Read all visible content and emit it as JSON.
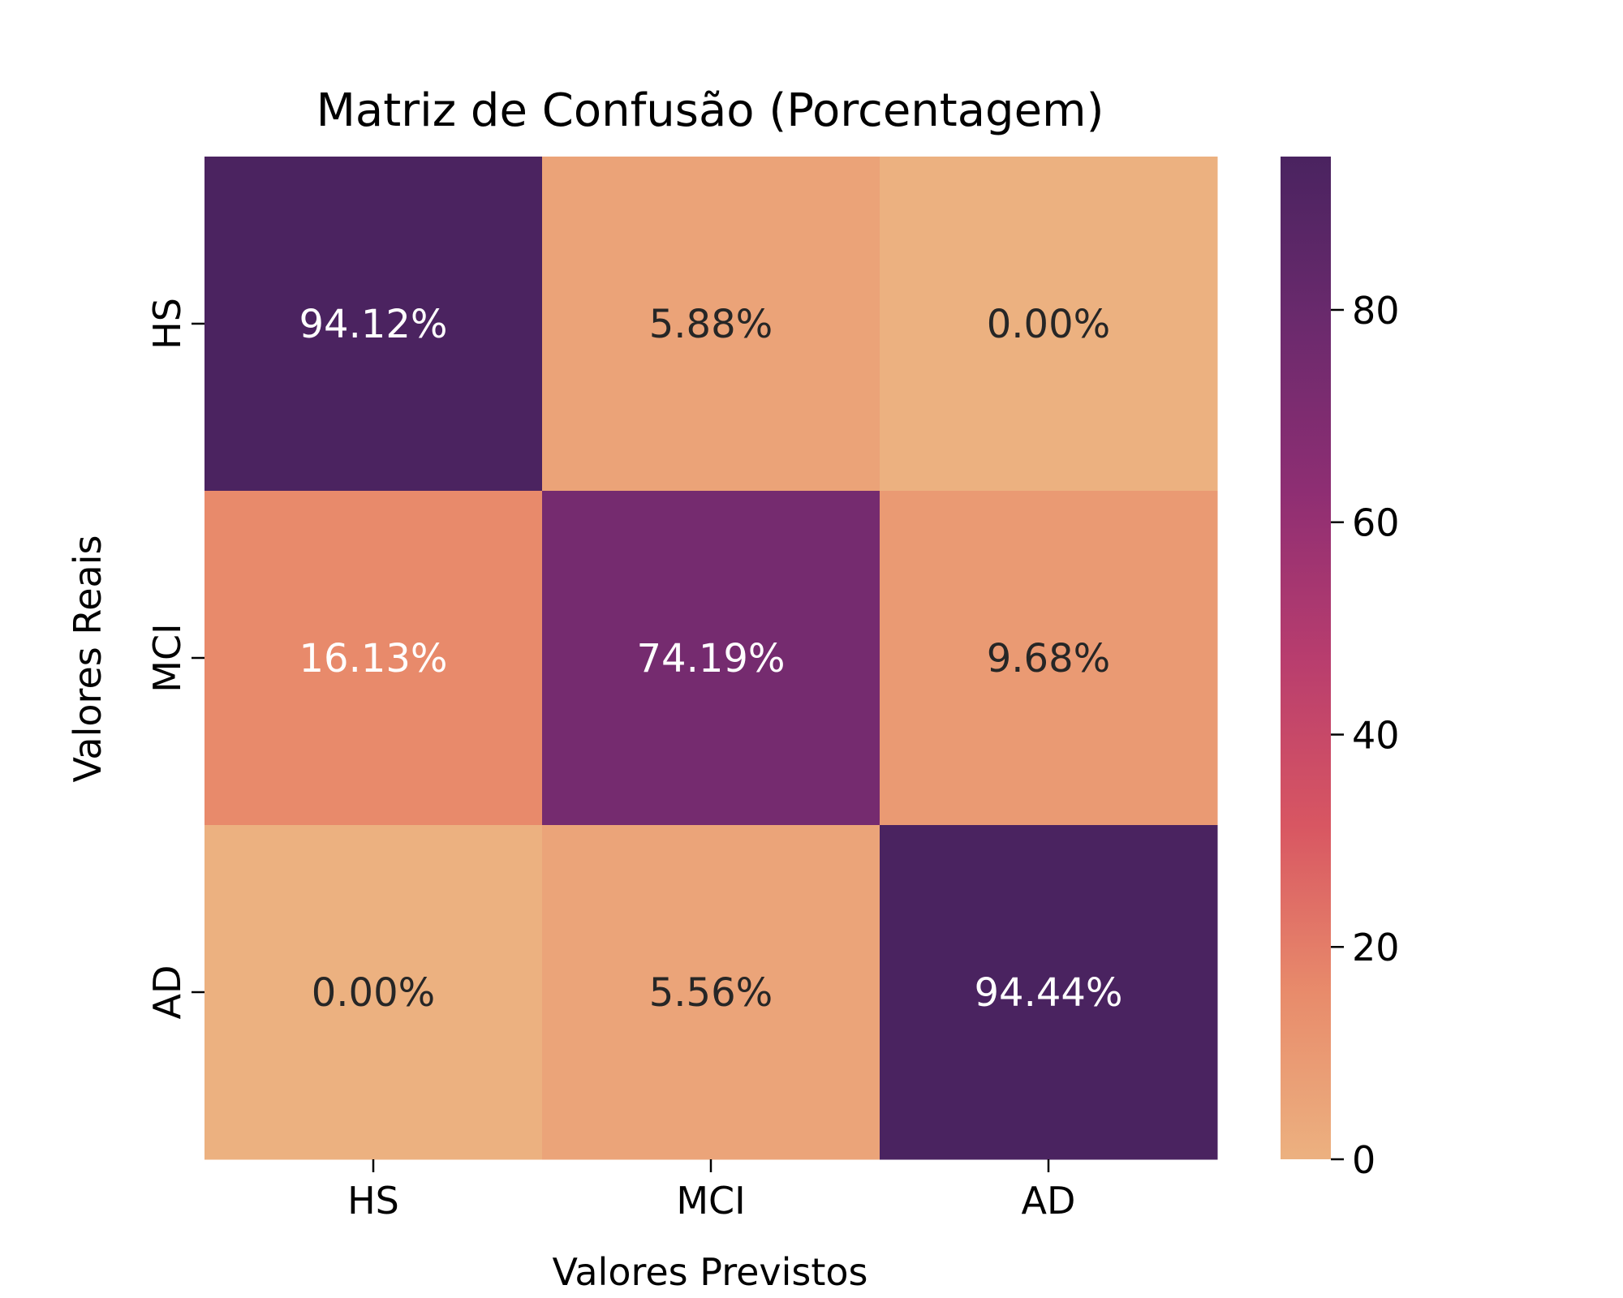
{
  "chart_data": {
    "type": "heatmap",
    "title": "Matriz de Confusão (Porcentagem)",
    "xlabel": "Valores Previstos",
    "ylabel": "Valores Reais",
    "x_categories": [
      "HS",
      "MCI",
      "AD"
    ],
    "y_categories": [
      "HS",
      "MCI",
      "AD"
    ],
    "values": [
      [
        94.12,
        5.88,
        0.0
      ],
      [
        16.13,
        74.19,
        9.68
      ],
      [
        0.0,
        5.56,
        94.44
      ]
    ],
    "cell_labels": [
      [
        "94.12%",
        "5.88%",
        "0.00%"
      ],
      [
        "16.13%",
        "74.19%",
        "9.68%"
      ],
      [
        "0.00%",
        "5.56%",
        "94.44%"
      ]
    ],
    "colormap": "flare",
    "colorbar": {
      "vmin": 0,
      "vmax": 94.44,
      "ticks": [
        0,
        20,
        40,
        60,
        80
      ],
      "tick_labels": [
        "0",
        "20",
        "40",
        "60",
        "80"
      ]
    },
    "colorscale": [
      "#ecb180",
      "#e88b6b",
      "#d85662",
      "#b83d6e",
      "#8e2e73",
      "#6b2a6d",
      "#4a2360"
    ],
    "grid": false
  }
}
